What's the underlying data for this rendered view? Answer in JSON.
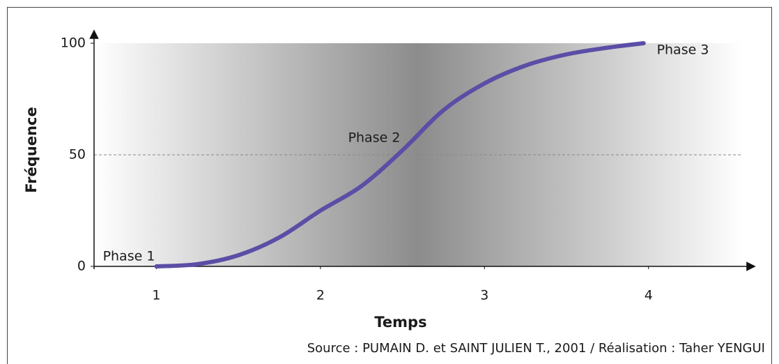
{
  "chart_data": {
    "type": "line",
    "x_label": "Temps",
    "y_label": "Fréquence",
    "x": [
      1,
      1.25,
      1.5,
      1.75,
      2,
      2.25,
      2.5,
      2.75,
      3,
      3.25,
      3.5,
      3.75,
      3.97
    ],
    "series": [
      {
        "color": "#5a4ea6",
        "values": [
          0,
          1,
          5,
          13,
          25,
          36,
          52,
          70,
          82,
          90,
          95,
          98,
          100
        ]
      }
    ],
    "xlim": [
      0.62,
      4.6
    ],
    "xticks": [
      1,
      2,
      3,
      4
    ],
    "ylim": [
      0,
      100
    ],
    "yticks": [
      0,
      50,
      100
    ],
    "grid": true,
    "annotations": [
      "Phase 1",
      "Phase 2",
      "Phase 3"
    ],
    "source": "Source : PUMAIN D. et SAINT JULIEN T., 2001 / Réalisation : Taher YENGUI"
  }
}
